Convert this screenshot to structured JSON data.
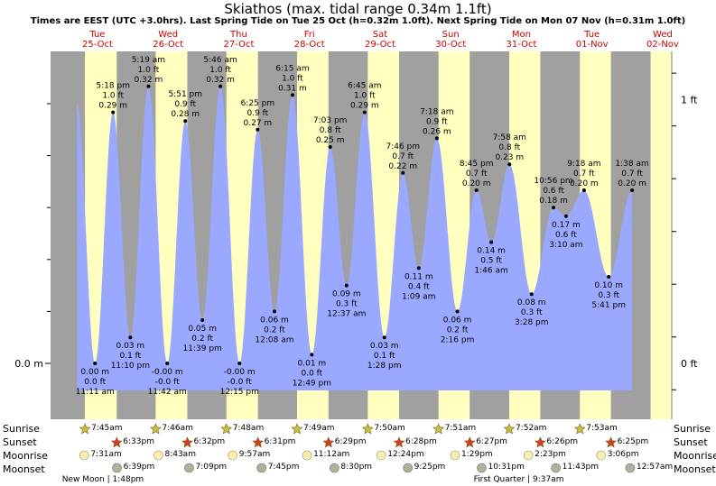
{
  "title": "Skiathos (max. tidal range 0.34m 1.1ft)",
  "subtitle": "Times are EEST (UTC +3.0hrs). Last Spring Tide on Tue 25 Oct (h=0.32m 1.0ft). Next Spring Tide on Mon 07 Nov (h=0.31m 1.0ft)",
  "chart_data": {
    "type": "area",
    "title": "Skiathos (max. tidal range 0.34m 1.1ft)",
    "y_left_label": "0.0 m",
    "y_right_labels": [
      "1 ft",
      "0 ft"
    ],
    "days": [
      {
        "dow": "Tue",
        "date": "25-Oct"
      },
      {
        "dow": "Wed",
        "date": "26-Oct"
      },
      {
        "dow": "Thu",
        "date": "27-Oct"
      },
      {
        "dow": "Fri",
        "date": "28-Oct"
      },
      {
        "dow": "Sat",
        "date": "29-Oct"
      },
      {
        "dow": "Sun",
        "date": "30-Oct"
      },
      {
        "dow": "Mon",
        "date": "31-Oct"
      },
      {
        "dow": "Tue",
        "date": "01-Nov"
      },
      {
        "dow": "Wed",
        "date": "02-Nov"
      }
    ],
    "tides": [
      {
        "day": 0,
        "time": "11:11 am",
        "m": "0.00 m",
        "ft": "0.0 ft",
        "h": 0.0,
        "hour": 11.18
      },
      {
        "day": 0,
        "time": "5:18 pm",
        "m": "0.29 m",
        "ft": "1.0 ft",
        "h": 0.29,
        "hour": 17.3
      },
      {
        "day": 0,
        "time": "11:10 pm",
        "m": "0.03 m",
        "ft": "0.1 ft",
        "h": 0.03,
        "hour": 23.17
      },
      {
        "day": 1,
        "time": "5:19 am",
        "m": "0.32 m",
        "ft": "1.0 ft",
        "h": 0.32,
        "hour": 5.32
      },
      {
        "day": 1,
        "time": "11:42 am",
        "m": "-0.00 m",
        "ft": "-0.0 ft",
        "h": 0.0,
        "hour": 11.7
      },
      {
        "day": 1,
        "time": "5:51 pm",
        "m": "0.28 m",
        "ft": "0.9 ft",
        "h": 0.28,
        "hour": 17.85
      },
      {
        "day": 1,
        "time": "11:39 pm",
        "m": "0.05 m",
        "ft": "0.2 ft",
        "h": 0.05,
        "hour": 23.65
      },
      {
        "day": 2,
        "time": "5:46 am",
        "m": "0.32 m",
        "ft": "1.0 ft",
        "h": 0.32,
        "hour": 5.77
      },
      {
        "day": 2,
        "time": "12:15 pm",
        "m": "-0.00 m",
        "ft": "-0.0 ft",
        "h": 0.0,
        "hour": 12.25
      },
      {
        "day": 2,
        "time": "6:25 pm",
        "m": "0.27 m",
        "ft": "0.9 ft",
        "h": 0.27,
        "hour": 18.42
      },
      {
        "day": 3,
        "time": "12:08 am",
        "m": "0.06 m",
        "ft": "0.2 ft",
        "h": 0.06,
        "hour": 0.13
      },
      {
        "day": 3,
        "time": "6:15 am",
        "m": "0.31 m",
        "ft": "1.0 ft",
        "h": 0.31,
        "hour": 6.25
      },
      {
        "day": 3,
        "time": "12:49 pm",
        "m": "0.01 m",
        "ft": "0.0 ft",
        "h": 0.01,
        "hour": 12.82
      },
      {
        "day": 3,
        "time": "7:03 pm",
        "m": "0.25 m",
        "ft": "0.8 ft",
        "h": 0.25,
        "hour": 19.05
      },
      {
        "day": 4,
        "time": "12:37 am",
        "m": "0.09 m",
        "ft": "0.3 ft",
        "h": 0.09,
        "hour": 0.62
      },
      {
        "day": 4,
        "time": "6:45 am",
        "m": "0.29 m",
        "ft": "1.0 ft",
        "h": 0.29,
        "hour": 6.75
      },
      {
        "day": 4,
        "time": "1:28 pm",
        "m": "0.03 m",
        "ft": "0.1 ft",
        "h": 0.03,
        "hour": 13.47
      },
      {
        "day": 4,
        "time": "7:46 pm",
        "m": "0.22 m",
        "ft": "0.7 ft",
        "h": 0.22,
        "hour": 19.77
      },
      {
        "day": 5,
        "time": "1:09 am",
        "m": "0.11 m",
        "ft": "0.4 ft",
        "h": 0.11,
        "hour": 1.15
      },
      {
        "day": 5,
        "time": "7:18 am",
        "m": "0.26 m",
        "ft": "0.9 ft",
        "h": 0.26,
        "hour": 7.3
      },
      {
        "day": 5,
        "time": "2:16 pm",
        "m": "0.06 m",
        "ft": "0.2 ft",
        "h": 0.06,
        "hour": 14.27
      },
      {
        "day": 5,
        "time": "8:45 pm",
        "m": "0.20 m",
        "ft": "0.7 ft",
        "h": 0.2,
        "hour": 20.75
      },
      {
        "day": 6,
        "time": "1:46 am",
        "m": "0.14 m",
        "ft": "0.5 ft",
        "h": 0.14,
        "hour": 1.77
      },
      {
        "day": 6,
        "time": "7:58 am",
        "m": "0.23 m",
        "ft": "0.8 ft",
        "h": 0.23,
        "hour": 7.97
      },
      {
        "day": 6,
        "time": "3:28 pm",
        "m": "0.08 m",
        "ft": "0.3 ft",
        "h": 0.08,
        "hour": 15.47
      },
      {
        "day": 6,
        "time": "10:56 pm",
        "m": "0.18 m",
        "ft": "0.6 ft",
        "h": 0.18,
        "hour": 22.93
      },
      {
        "day": 7,
        "time": "3:10 am",
        "m": "0.17 m",
        "ft": "0.6 ft",
        "h": 0.17,
        "hour": 3.17
      },
      {
        "day": 7,
        "time": "9:18 am",
        "m": "0.20 m",
        "ft": "0.7 ft",
        "h": 0.2,
        "hour": 9.3
      },
      {
        "day": 7,
        "time": "5:41 pm",
        "m": "0.10 m",
        "ft": "0.3 ft",
        "h": 0.1,
        "hour": 17.68
      },
      {
        "day": 8,
        "time": "1:38 am",
        "m": "0.20 m",
        "ft": "0.7 ft",
        "h": 0.2,
        "hour": 1.63
      }
    ],
    "sun": [
      {
        "day": 0,
        "sunrise": "7:45am",
        "sunset": "6:33pm",
        "rise_h": 7.75,
        "set_h": 18.55
      },
      {
        "day": 1,
        "sunrise": "7:46am",
        "sunset": "6:32pm",
        "rise_h": 7.77,
        "set_h": 18.53
      },
      {
        "day": 2,
        "sunrise": "7:48am",
        "sunset": "6:31pm",
        "rise_h": 7.8,
        "set_h": 18.52
      },
      {
        "day": 3,
        "sunrise": "7:49am",
        "sunset": "6:29pm",
        "rise_h": 7.82,
        "set_h": 18.48
      },
      {
        "day": 4,
        "sunrise": "7:50am",
        "sunset": "6:28pm",
        "rise_h": 7.83,
        "set_h": 18.47
      },
      {
        "day": 5,
        "sunrise": "7:51am",
        "sunset": "6:27pm",
        "rise_h": 7.85,
        "set_h": 18.45
      },
      {
        "day": 6,
        "sunrise": "7:52am",
        "sunset": "6:26pm",
        "rise_h": 7.87,
        "set_h": 18.43
      },
      {
        "day": 7,
        "sunrise": "7:53am",
        "sunset": "6:25pm",
        "rise_h": 7.88,
        "set_h": 18.42
      }
    ],
    "moonrise": [
      {
        "day": 0,
        "time": "7:31am",
        "hour": 7.52
      },
      {
        "day": 1,
        "time": "8:43am",
        "hour": 8.72
      },
      {
        "day": 2,
        "time": "9:57am",
        "hour": 9.95
      },
      {
        "day": 3,
        "time": "11:12am",
        "hour": 11.2
      },
      {
        "day": 4,
        "time": "12:24pm",
        "hour": 12.4
      },
      {
        "day": 5,
        "time": "1:29pm",
        "hour": 13.48
      },
      {
        "day": 6,
        "time": "2:23pm",
        "hour": 14.38
      },
      {
        "day": 7,
        "time": "3:06pm",
        "hour": 15.1
      }
    ],
    "moonset": [
      {
        "day": 0,
        "time": "6:39pm",
        "hour": 18.65
      },
      {
        "day": 1,
        "time": "7:09pm",
        "hour": 19.15
      },
      {
        "day": 2,
        "time": "7:45pm",
        "hour": 19.75
      },
      {
        "day": 3,
        "time": "8:30pm",
        "hour": 20.5
      },
      {
        "day": 4,
        "time": "9:25pm",
        "hour": 21.42
      },
      {
        "day": 5,
        "time": "10:31pm",
        "hour": 22.52
      },
      {
        "day": 6,
        "time": "11:43pm",
        "hour": 23.72
      },
      {
        "day": 8,
        "time": "12:57am",
        "hour": 0.95
      }
    ],
    "moon_phases": [
      {
        "label": "New Moon | 1:48pm",
        "day": 0,
        "hour": 13.8
      },
      {
        "label": "First Quarter | 9:37am",
        "day": 6,
        "hour": 9.62
      }
    ],
    "row_labels": {
      "sunrise": "Sunrise",
      "sunset": "Sunset",
      "moonrise": "Moonrise",
      "moonset": "Moonset"
    },
    "colors": {
      "night": "#a0a0a0",
      "day": "#ffffc0",
      "water": "#9aa8ff",
      "sun_rise": "#c8c040",
      "sun_set": "#d04020",
      "moon_rise": "#f8f0b0",
      "moon_set": "#b0b0a0"
    }
  }
}
